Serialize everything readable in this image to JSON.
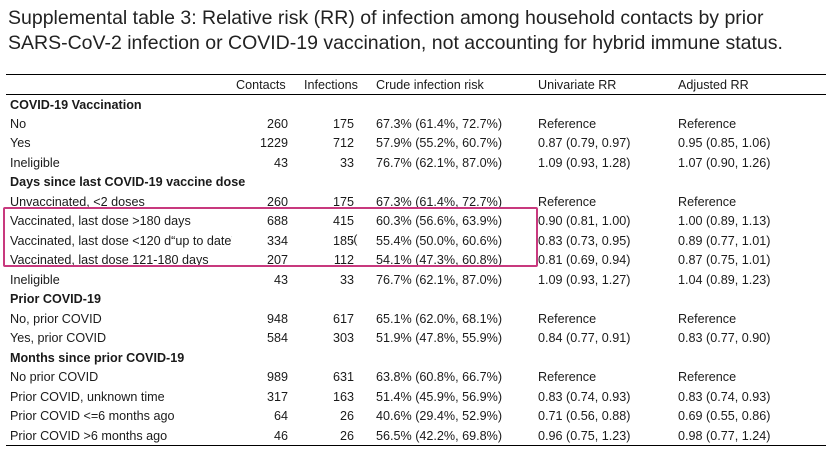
{
  "title": "Supplemental table 3: Relative risk (RR) of infection among household contacts by prior SARS-CoV-2 infection or COVID-19 vaccination, not accounting for hybrid immune status.",
  "headers": [
    "",
    "Contacts",
    "Infections",
    "Crude infection risk",
    "Univariate RR",
    "Adjusted RR"
  ],
  "annotation": ":(",
  "rows": [
    {
      "type": "section",
      "label": "COVID-19 Vaccination"
    },
    {
      "type": "data",
      "label": "No",
      "contacts": "260",
      "infections": "175",
      "crude": "67.3% (61.4%, 72.7%)",
      "univariate": "Reference",
      "adjusted": "Reference"
    },
    {
      "type": "data",
      "label": "Yes",
      "contacts": "1229",
      "infections": "712",
      "crude": "57.9% (55.2%, 60.7%)",
      "univariate": "0.87 (0.79, 0.97)",
      "adjusted": "0.95 (0.85, 1.06)"
    },
    {
      "type": "data",
      "label": "Ineligible",
      "contacts": "43",
      "infections": "33",
      "crude": "76.7% (62.1%, 87.0%)",
      "univariate": "1.09 (0.93, 1.28)",
      "adjusted": "1.07 (0.90, 1.26)"
    },
    {
      "type": "section",
      "label": "Days since last COVID-19 vaccine dose"
    },
    {
      "type": "data",
      "label": "Unvaccinated, <2 doses",
      "contacts": "260",
      "infections": "175",
      "crude": "67.3% (61.4%, 72.7%)",
      "univariate": "Reference",
      "adjusted": "Reference"
    },
    {
      "type": "data",
      "label": "Vaccinated, last dose >180 days",
      "contacts": "688",
      "infections": "415",
      "crude": "60.3% (56.6%, 63.9%)",
      "univariate": "0.90 (0.81, 1.00)",
      "adjusted": "1.00 (0.89, 1.13)"
    },
    {
      "type": "data",
      "label": "Vaccinated, last dose <120 d“up to date”",
      "contacts": "334",
      "infections": "185",
      "crude": "55.4% (50.0%, 60.6%)",
      "univariate": "0.83 (0.73, 0.95)",
      "adjusted": "0.89 (0.77, 1.01)",
      "annotated": true
    },
    {
      "type": "data",
      "label": "Vaccinated, last dose 121-180 days",
      "contacts": "207",
      "infections": "112",
      "crude": "54.1% (47.3%, 60.8%)",
      "univariate": "0.81 (0.69, 0.94)",
      "adjusted": "0.87 (0.75, 1.01)"
    },
    {
      "type": "data",
      "label": "Ineligible",
      "contacts": "43",
      "infections": "33",
      "crude": "76.7% (62.1%, 87.0%)",
      "univariate": "1.09 (0.93, 1.27)",
      "adjusted": "1.04 (0.89, 1.23)"
    },
    {
      "type": "section",
      "label": "Prior COVID-19"
    },
    {
      "type": "data",
      "label": "No, prior COVID",
      "contacts": "948",
      "infections": "617",
      "crude": "65.1% (62.0%, 68.1%)",
      "univariate": "Reference",
      "adjusted": "Reference"
    },
    {
      "type": "data",
      "label": "Yes, prior COVID",
      "contacts": "584",
      "infections": "303",
      "crude": "51.9% (47.8%, 55.9%)",
      "univariate": "0.84 (0.77, 0.91)",
      "adjusted": "0.83 (0.77, 0.90)"
    },
    {
      "type": "section",
      "label": "Months since prior COVID-19"
    },
    {
      "type": "data",
      "label": "No prior COVID",
      "contacts": "989",
      "infections": "631",
      "crude": "63.8% (60.8%, 66.7%)",
      "univariate": "Reference",
      "adjusted": "Reference"
    },
    {
      "type": "data",
      "label": "Prior COVID, unknown time",
      "contacts": "317",
      "infections": "163",
      "crude": "51.4% (45.9%, 56.9%)",
      "univariate": "0.83 (0.74, 0.93)",
      "adjusted": "0.83 (0.74, 0.93)"
    },
    {
      "type": "data",
      "label": "Prior COVID <=6 months ago",
      "contacts": "64",
      "infections": "26",
      "crude": "40.6% (29.4%, 52.9%)",
      "univariate": "0.71 (0.56, 0.88)",
      "adjusted": "0.69 (0.55, 0.86)"
    },
    {
      "type": "data",
      "label": "Prior COVID >6 months ago",
      "contacts": "46",
      "infections": "26",
      "crude": "56.5% (42.2%, 69.8%)",
      "univariate": "0.96 (0.75, 1.23)",
      "adjusted": "0.98 (0.77, 1.24)"
    }
  ],
  "colors": {
    "highlight_border": "#c8397e",
    "rule": "#000000"
  }
}
